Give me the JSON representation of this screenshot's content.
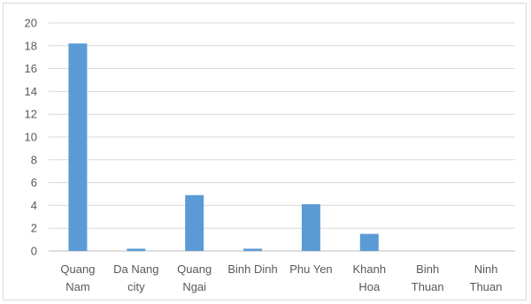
{
  "chart_data": {
    "type": "bar",
    "title": "",
    "xlabel": "",
    "ylabel": "",
    "ylim": [
      0,
      20
    ],
    "yticks": [
      0,
      2,
      4,
      6,
      8,
      10,
      12,
      14,
      16,
      18,
      20
    ],
    "grid": true,
    "legend": "none",
    "bar_color": "#5b9bd5",
    "categories": [
      [
        "Quang",
        "Nam"
      ],
      [
        "Da Nang",
        "city"
      ],
      [
        "Quang",
        "Ngai"
      ],
      [
        "Binh Dinh"
      ],
      [
        "Phu Yen"
      ],
      [
        "Khanh",
        "Hoa"
      ],
      [
        "Binh",
        "Thuan"
      ],
      [
        "Ninh",
        "Thuan"
      ]
    ],
    "values": [
      18.2,
      0.2,
      4.9,
      0.2,
      4.1,
      1.5,
      0,
      0
    ]
  }
}
